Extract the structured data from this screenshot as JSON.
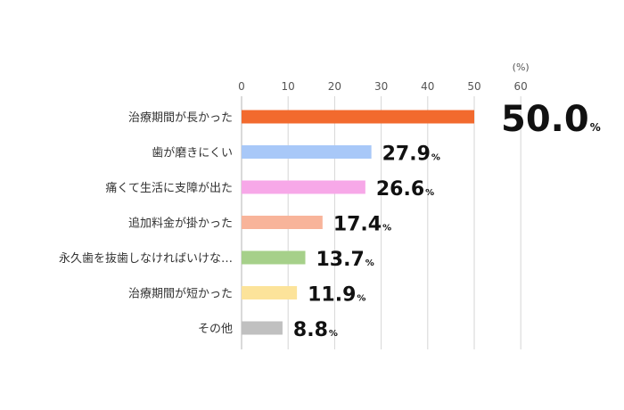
{
  "chart_data": {
    "type": "bar",
    "orientation": "horizontal",
    "unit_label": "(%)",
    "value_suffix": "%",
    "xlim": [
      0,
      60
    ],
    "x_ticks": [
      "0",
      "10",
      "20",
      "30",
      "40",
      "50",
      "60"
    ],
    "grid": true,
    "categories": [
      "治療期間が長かった",
      "歯が磨きにくい",
      "痛くて生活に支障が出た",
      "追加料金が掛かった",
      "永久歯を抜歯しなければいけな…",
      "治療期間が短かった",
      "その他"
    ],
    "values": [
      50.0,
      27.9,
      26.6,
      17.4,
      13.7,
      11.9,
      8.8
    ],
    "value_labels": [
      "50.0",
      "27.9",
      "26.6",
      "17.4",
      "13.7",
      "11.9",
      "8.8"
    ],
    "bar_colors": [
      "#f26a2e",
      "#a8c8f8",
      "#f7a8e8",
      "#f8b49a",
      "#a6d08a",
      "#fce39a",
      "#c0c0c0"
    ],
    "highlight_color": "#f26a2e",
    "highlight_index": 0
  }
}
